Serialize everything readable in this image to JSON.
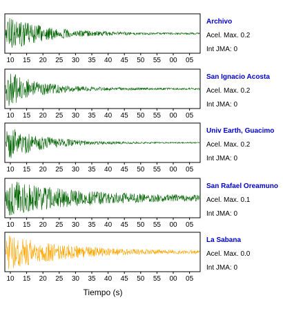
{
  "chart_data": {
    "type": "line",
    "xlabel": "Tiempo (s)",
    "x_tick_labels": [
      "10",
      "15",
      "20",
      "25",
      "30",
      "35",
      "40",
      "45",
      "50",
      "55",
      "00",
      "05"
    ],
    "series": [
      {
        "name": "Archivo",
        "accel_label": "Acel. Max. 0.2",
        "jma_label": "Int JMA: 0",
        "color": "#006400"
      },
      {
        "name": "San Ignacio Acosta",
        "accel_label": "Acel. Max. 0.2",
        "jma_label": "Int JMA: 0",
        "color": "#006400"
      },
      {
        "name": "Univ Earth, Guacimo",
        "accel_label": "Acel. Max. 0.2",
        "jma_label": "Int JMA: 0",
        "color": "#006400"
      },
      {
        "name": "San Rafael Oreamuno",
        "accel_label": "Acel. Max. 0.1",
        "jma_label": "Int JMA: 0",
        "color": "#006400"
      },
      {
        "name": "La Sabana",
        "accel_label": "Acel. Max. 0.0",
        "jma_label": "Int JMA: 0",
        "color": "#ffa500"
      }
    ]
  }
}
